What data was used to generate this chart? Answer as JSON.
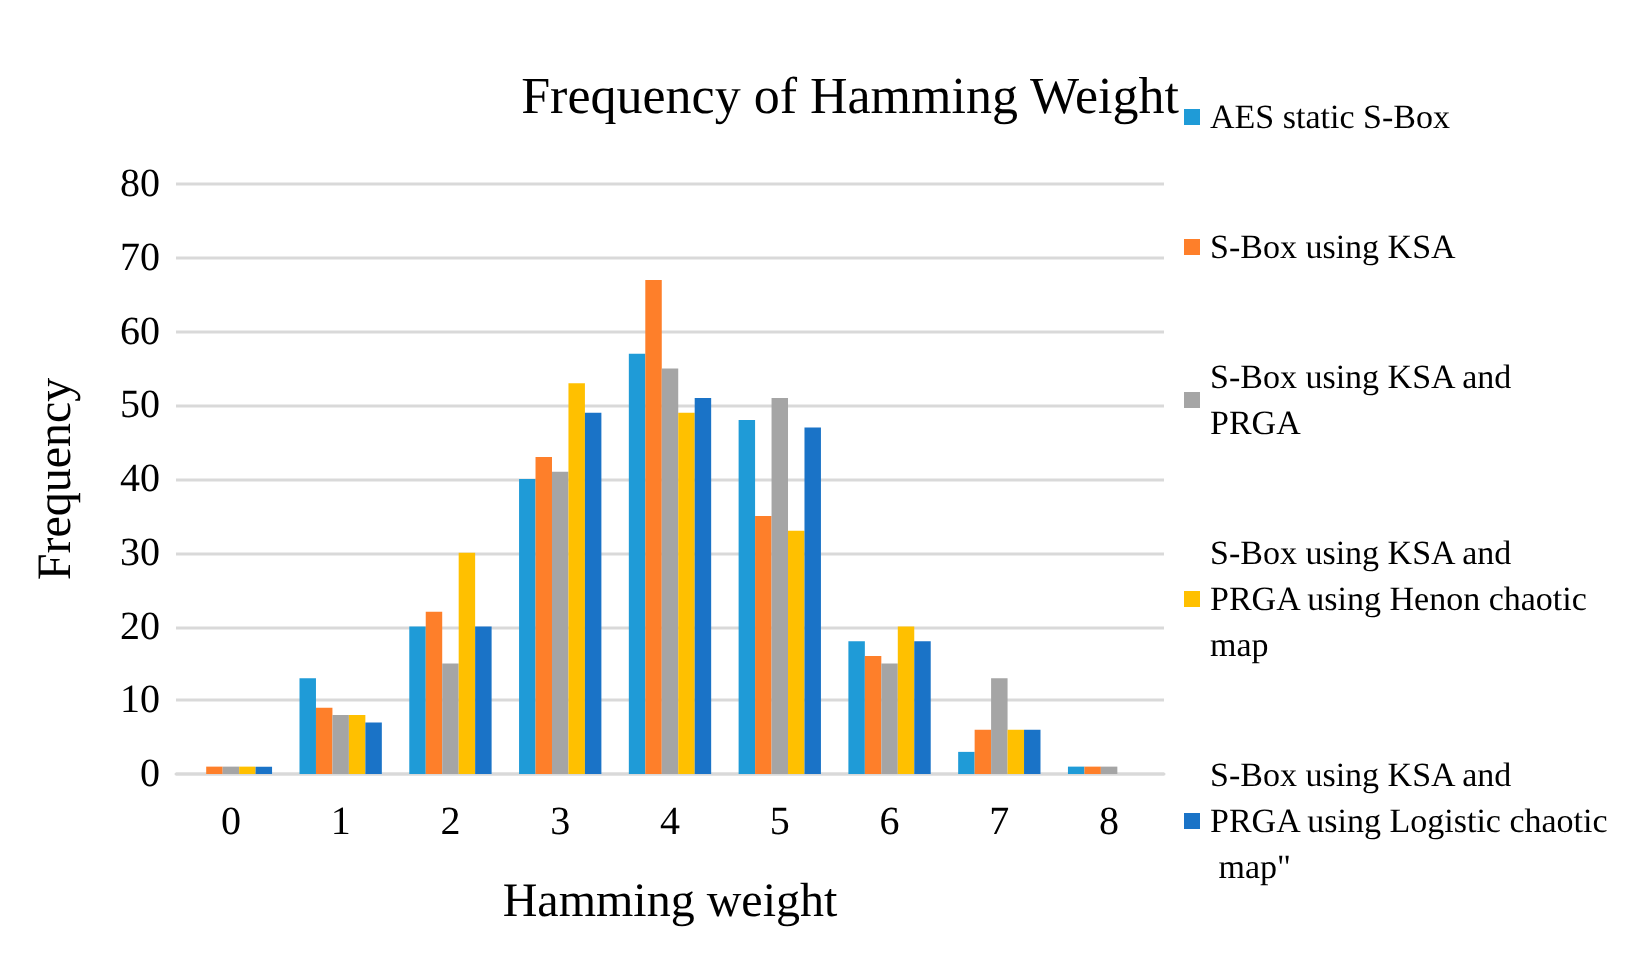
{
  "chart_data": {
    "type": "bar",
    "title": "Frequency of Hamming Weight",
    "xlabel": "Hamming weight",
    "ylabel": "Frequency",
    "categories": [
      "0",
      "1",
      "2",
      "3",
      "4",
      "5",
      "6",
      "7",
      "8"
    ],
    "series": [
      {
        "name": "AES static S-Box",
        "color": "#1f9bd7",
        "values": [
          0,
          13,
          20,
          40,
          57,
          48,
          18,
          3,
          1
        ]
      },
      {
        "name": "S-Box using KSA",
        "color": "#fe7f2a",
        "values": [
          1,
          9,
          22,
          43,
          67,
          35,
          16,
          6,
          1
        ]
      },
      {
        "name": "S-Box using KSA and PRGA",
        "color": "#a5a5a5",
        "values": [
          1,
          8,
          15,
          41,
          55,
          51,
          15,
          13,
          1
        ]
      },
      {
        "name": "S-Box using KSA and PRGA using Henon chaotic map",
        "color": "#ffc000",
        "values": [
          1,
          8,
          30,
          53,
          49,
          33,
          20,
          6,
          0
        ]
      },
      {
        "name": "S-Box using KSA and PRGA using Logistic chaotic map\"",
        "color": "#1a73c7",
        "values": [
          1,
          7,
          20,
          49,
          51,
          47,
          18,
          6,
          0
        ]
      }
    ],
    "ylim": [
      0,
      80
    ],
    "yticks": [
      0,
      10,
      20,
      30,
      40,
      50,
      60,
      70,
      80
    ],
    "grid": "y",
    "legend": "right"
  }
}
